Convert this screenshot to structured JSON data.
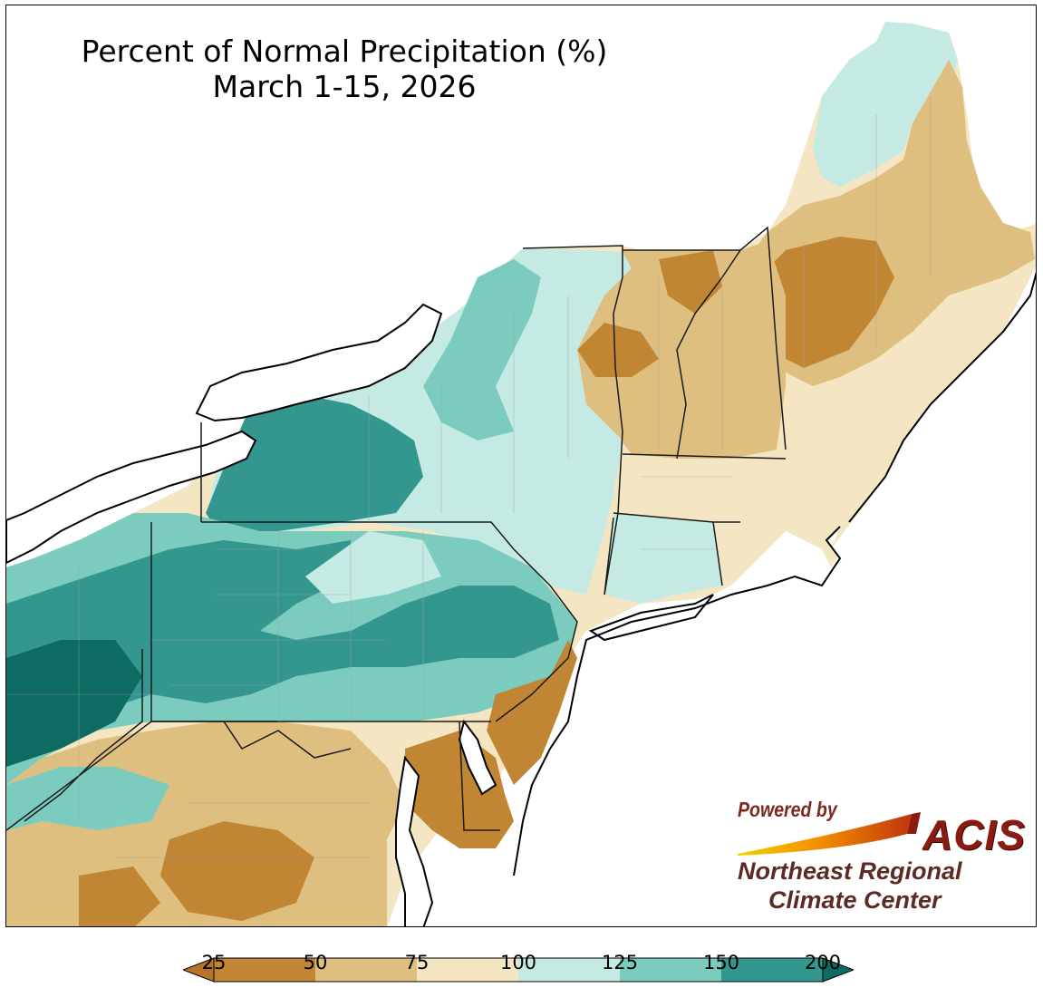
{
  "title": {
    "line1": "Percent of Normal Precipitation (%)",
    "line2": "March 1-15, 2026"
  },
  "logo": {
    "powered_by": "Powered by",
    "acis": "ACIS",
    "org_line1": "Northeast Regional",
    "org_line2": "Climate Center"
  },
  "legend": {
    "ticks": [
      "25",
      "50",
      "75",
      "100",
      "125",
      "150",
      "200"
    ],
    "bins": [
      {
        "range": "<25",
        "color": "#b8732a"
      },
      {
        "range": "25-50",
        "color": "#c08633"
      },
      {
        "range": "50-75",
        "color": "#dfbf7f"
      },
      {
        "range": "75-100",
        "color": "#f5e6c3"
      },
      {
        "range": "100-125",
        "color": "#c5eae4"
      },
      {
        "range": "125-150",
        "color": "#7ccbbf"
      },
      {
        "range": "150-200",
        "color": "#34978f"
      },
      {
        "range": ">200",
        "color": "#0d6b62"
      }
    ]
  },
  "map": {
    "region": "Northeast United States",
    "colors": {
      "water": "#ffffff",
      "border": "#000000",
      "county": "#9aa49f"
    }
  }
}
